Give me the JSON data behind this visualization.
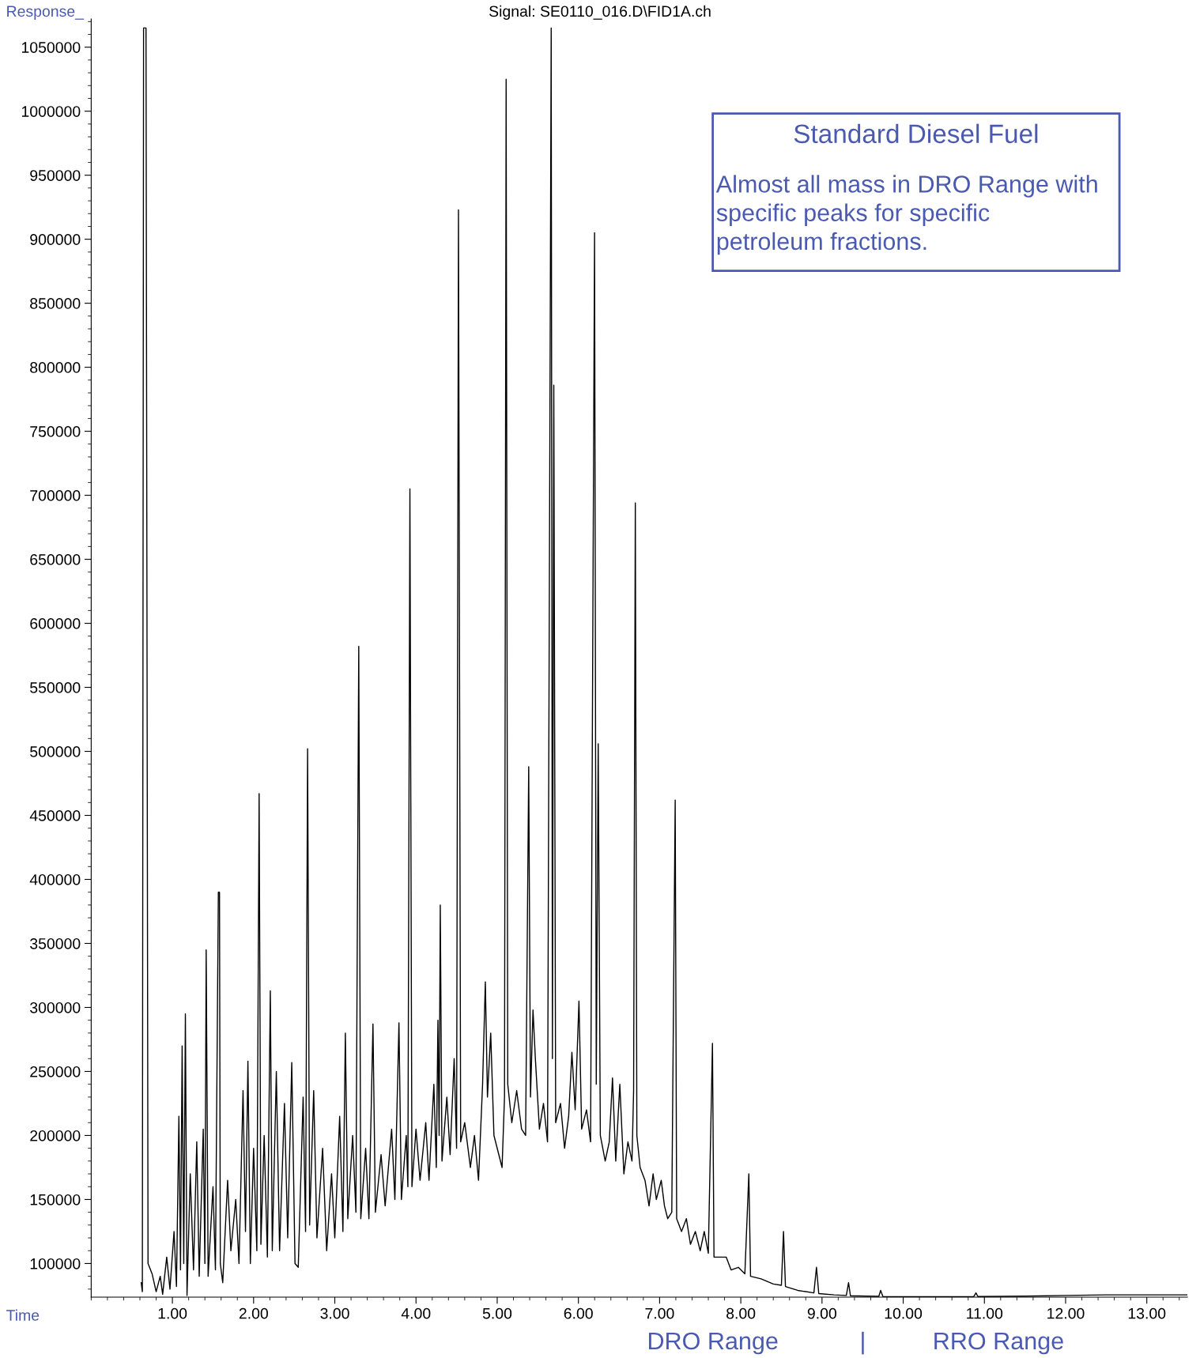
{
  "chart_data": {
    "type": "line",
    "title": "Signal: SE0110_016.D\\FID1A.ch",
    "xlabel": "Time",
    "ylabel": "Response_",
    "annotations": [
      "Standard Diesel Fuel",
      "Almost all mass in DRO Range with\nspecific peaks for specific\npetroleum fractions.",
      "DRO Range",
      "|",
      "RRO Range"
    ],
    "x": [
      0.616,
      0.63,
      0.645,
      0.675,
      0.7,
      0.75,
      0.8,
      0.85,
      0.88,
      0.93,
      0.97,
      1.02,
      1.05,
      1.08,
      1.1,
      1.12,
      1.14,
      1.16,
      1.18,
      1.22,
      1.26,
      1.3,
      1.33,
      1.38,
      1.4,
      1.416,
      1.44,
      1.5,
      1.53,
      1.566,
      1.58,
      1.59,
      1.62,
      1.68,
      1.72,
      1.78,
      1.82,
      1.87,
      1.9,
      1.93,
      1.96,
      2.0,
      2.04,
      2.068,
      2.09,
      2.13,
      2.17,
      2.206,
      2.23,
      2.28,
      2.32,
      2.38,
      2.42,
      2.47,
      2.51,
      2.55,
      2.61,
      2.64,
      2.665,
      2.69,
      2.74,
      2.78,
      2.85,
      2.9,
      2.96,
      3.0,
      3.06,
      3.1,
      3.13,
      3.16,
      3.22,
      3.26,
      3.295,
      3.32,
      3.38,
      3.42,
      3.47,
      3.5,
      3.57,
      3.62,
      3.7,
      3.74,
      3.79,
      3.82,
      3.88,
      3.9,
      3.925,
      3.95,
      4.0,
      4.05,
      4.12,
      4.16,
      4.22,
      4.25,
      4.27,
      4.285,
      4.299,
      4.32,
      4.38,
      4.42,
      4.47,
      4.5,
      4.523,
      4.55,
      4.6,
      4.67,
      4.72,
      4.77,
      4.82,
      4.854,
      4.88,
      4.92,
      4.96,
      5.02,
      5.06,
      5.09,
      5.11,
      5.13,
      5.18,
      5.24,
      5.3,
      5.35,
      5.388,
      5.41,
      5.441,
      5.47,
      5.52,
      5.57,
      5.62,
      5.665,
      5.68,
      5.697,
      5.72,
      5.78,
      5.83,
      5.88,
      5.92,
      5.96,
      6.007,
      6.04,
      6.1,
      6.15,
      6.199,
      6.22,
      6.244,
      6.27,
      6.33,
      6.38,
      6.42,
      6.46,
      6.51,
      6.56,
      6.61,
      6.66,
      6.68,
      6.701,
      6.72,
      6.76,
      6.82,
      6.87,
      6.92,
      6.96,
      7.02,
      7.06,
      7.1,
      7.15,
      7.192,
      7.21,
      7.27,
      7.33,
      7.38,
      7.44,
      7.5,
      7.55,
      7.6,
      7.651,
      7.67,
      7.75,
      7.82,
      7.88,
      7.97,
      8.05,
      8.099,
      8.12,
      8.25,
      8.4,
      8.5,
      8.526,
      8.55,
      8.7,
      8.9,
      8.932,
      8.96,
      9.15,
      9.3,
      9.327,
      9.35,
      9.55,
      9.7,
      9.722,
      9.75,
      10.0,
      10.5,
      10.87,
      10.896,
      10.92,
      11.5,
      12.0,
      12.5,
      13.0,
      13.5
    ],
    "series": [
      {
        "color": "#000000",
        "values": [
          85000,
          78000,
          1065000,
          1065000,
          100000,
          92000,
          78000,
          90000,
          76000,
          105000,
          80000,
          125000,
          82000,
          215000,
          95000,
          270000,
          100000,
          295000,
          75000,
          170000,
          95000,
          195000,
          90000,
          205000,
          100000,
          345000,
          90000,
          160000,
          95000,
          390000,
          390000,
          100000,
          85000,
          165000,
          110000,
          150000,
          100000,
          235000,
          125000,
          258000,
          100000,
          190000,
          110000,
          467000,
          115000,
          200000,
          105000,
          313000,
          110000,
          250000,
          110000,
          225000,
          120000,
          257000,
          100000,
          97000,
          230000,
          125000,
          502000,
          130000,
          235000,
          120000,
          190000,
          110000,
          170000,
          120000,
          215000,
          125000,
          280000,
          135000,
          200000,
          140000,
          582000,
          135000,
          190000,
          135000,
          287000,
          140000,
          185000,
          145000,
          205000,
          150000,
          288000,
          150000,
          200000,
          160000,
          705000,
          160000,
          205000,
          165000,
          210000,
          165000,
          240000,
          175000,
          290000,
          200000,
          380000,
          180000,
          230000,
          185000,
          260000,
          190000,
          923000,
          195000,
          210000,
          175000,
          200000,
          165000,
          240000,
          320000,
          230000,
          280000,
          200000,
          185000,
          175000,
          230000,
          1025000,
          240000,
          210000,
          235000,
          205000,
          200000,
          488000,
          230000,
          298000,
          260000,
          205000,
          225000,
          195000,
          1065000,
          260000,
          786000,
          210000,
          225000,
          190000,
          215000,
          265000,
          220000,
          305000,
          205000,
          220000,
          195000,
          905000,
          240000,
          506000,
          200000,
          180000,
          195000,
          245000,
          180000,
          240000,
          170000,
          195000,
          180000,
          235000,
          694000,
          200000,
          175000,
          165000,
          145000,
          170000,
          150000,
          165000,
          145000,
          135000,
          140000,
          462000,
          135000,
          125000,
          135000,
          115000,
          125000,
          110000,
          125000,
          108000,
          272000,
          105000,
          105000,
          105000,
          95000,
          97000,
          92000,
          170000,
          90000,
          88000,
          84000,
          83000,
          125000,
          82000,
          79000,
          77000,
          97000,
          76500,
          75500,
          75000,
          85000,
          74800,
          74500,
          74300,
          79000,
          74200,
          74000,
          74000,
          74200,
          77000,
          74200,
          74500,
          75000,
          75500,
          75500,
          75500
        ]
      }
    ],
    "xlim": [
      0,
      13.5
    ],
    "ylim": [
      73700,
      1072000
    ],
    "xticks": [
      {
        "value": 1,
        "label": "1.00"
      },
      {
        "value": 2,
        "label": "2.00"
      },
      {
        "value": 3,
        "label": "3.00"
      },
      {
        "value": 4,
        "label": "4.00"
      },
      {
        "value": 5,
        "label": "5.00"
      },
      {
        "value": 6,
        "label": "6.00"
      },
      {
        "value": 7,
        "label": "7.00"
      },
      {
        "value": 8,
        "label": "8.00"
      },
      {
        "value": 9,
        "label": "9.00"
      },
      {
        "value": 10,
        "label": "10.00"
      },
      {
        "value": 11,
        "label": "11.00"
      },
      {
        "value": 12,
        "label": "12.00"
      },
      {
        "value": 13,
        "label": "13.00"
      }
    ],
    "yticks": [
      100000,
      150000,
      200000,
      250000,
      300000,
      350000,
      400000,
      450000,
      500000,
      550000,
      600000,
      650000,
      700000,
      750000,
      800000,
      850000,
      900000,
      950000,
      1000000,
      1050000
    ],
    "grid": false,
    "legend": false,
    "marker": "none",
    "line_style": "solid"
  }
}
